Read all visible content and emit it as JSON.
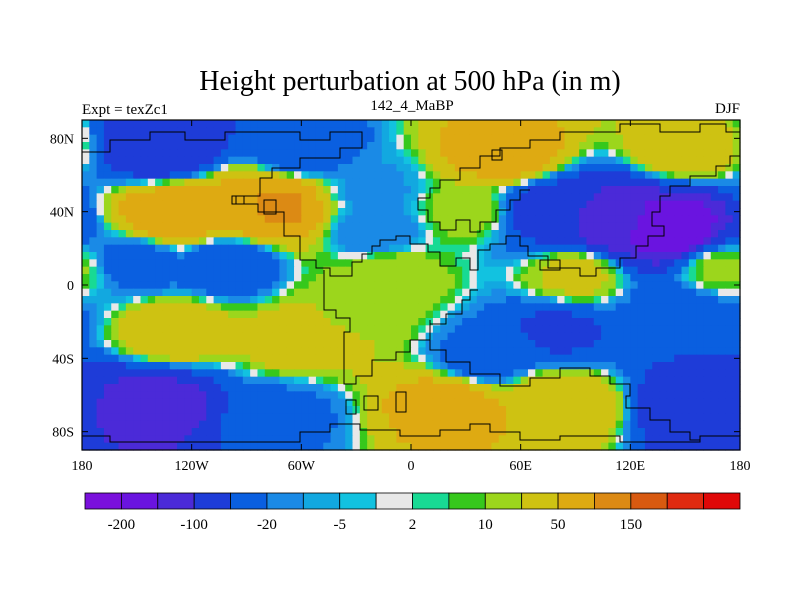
{
  "chart_data": {
    "type": "heatmap",
    "title": "Height perturbation at 500 hPa (in m)",
    "left_label": "Expt = texZc1",
    "center_label": "142_4_MaBP",
    "right_label": "DJF",
    "x_ticks": [
      {
        "value": -180,
        "label": "180"
      },
      {
        "value": -120,
        "label": "120W"
      },
      {
        "value": -60,
        "label": "60W"
      },
      {
        "value": 0,
        "label": "0"
      },
      {
        "value": 60,
        "label": "60E"
      },
      {
        "value": 120,
        "label": "120E"
      },
      {
        "value": 180,
        "label": "180"
      }
    ],
    "y_ticks": [
      {
        "value": 80,
        "label": "80N"
      },
      {
        "value": 40,
        "label": "40N"
      },
      {
        "value": 0,
        "label": "0"
      },
      {
        "value": -40,
        "label": "40S"
      },
      {
        "value": -80,
        "label": "80S"
      }
    ],
    "xlim": [
      -180,
      180
    ],
    "ylim": [
      -90,
      90
    ],
    "colorbar": {
      "colors": [
        "#7a10dc",
        "#6a14e0",
        "#4b2ad8",
        "#1e3cd8",
        "#0a5fe0",
        "#1a8ae6",
        "#12a8e0",
        "#12c2e0",
        "#e8e8e8",
        "#18da94",
        "#36c81c",
        "#9cd61c",
        "#cec212",
        "#deaa12",
        "#dc8a14",
        "#d85a10",
        "#e02a10",
        "#e00808"
      ],
      "labels": [
        {
          "boundary": 1,
          "text": "-200"
        },
        {
          "boundary": 3,
          "text": "-100"
        },
        {
          "boundary": 5,
          "text": "-20"
        },
        {
          "boundary": 7,
          "text": "-5"
        },
        {
          "boundary": 9,
          "text": "2"
        },
        {
          "boundary": 11,
          "text": "10"
        },
        {
          "boundary": 13,
          "text": "50"
        },
        {
          "boundary": 15,
          "text": "150"
        }
      ]
    },
    "field_centers": [
      {
        "lon": -135,
        "lat": 75,
        "value": -95
      },
      {
        "lon": -60,
        "lat": 75,
        "value": -40
      },
      {
        "lon": 50,
        "lat": 72,
        "value": 75
      },
      {
        "lon": 150,
        "lat": 75,
        "value": 35
      },
      {
        "lon": -130,
        "lat": 38,
        "value": 85
      },
      {
        "lon": -95,
        "lat": 40,
        "value": 60
      },
      {
        "lon": -75,
        "lat": 42,
        "value": 110
      },
      {
        "lon": -20,
        "lat": 52,
        "value": -12
      },
      {
        "lon": 75,
        "lat": 40,
        "value": -70
      },
      {
        "lon": 110,
        "lat": 35,
        "value": -130
      },
      {
        "lon": 140,
        "lat": 30,
        "value": -200
      },
      {
        "lon": -150,
        "lat": 12,
        "value": -30
      },
      {
        "lon": -100,
        "lat": 12,
        "value": -45
      },
      {
        "lon": -20,
        "lat": 30,
        "value": -20
      },
      {
        "lon": 30,
        "lat": 40,
        "value": 15
      },
      {
        "lon": -10,
        "lat": 5,
        "value": 18
      },
      {
        "lon": 90,
        "lat": 5,
        "value": 25
      },
      {
        "lon": 170,
        "lat": 8,
        "value": 12
      },
      {
        "lon": -130,
        "lat": -25,
        "value": 40
      },
      {
        "lon": -60,
        "lat": -30,
        "value": 35
      },
      {
        "lon": -30,
        "lat": -15,
        "value": 18
      },
      {
        "lon": 40,
        "lat": -40,
        "value": -30
      },
      {
        "lon": 80,
        "lat": -25,
        "value": -55
      },
      {
        "lon": 150,
        "lat": -15,
        "value": -35
      },
      {
        "lon": -140,
        "lat": -65,
        "value": -120
      },
      {
        "lon": -70,
        "lat": -70,
        "value": -25
      },
      {
        "lon": 20,
        "lat": -65,
        "value": 70
      },
      {
        "lon": 80,
        "lat": -65,
        "value": 50
      },
      {
        "lon": 160,
        "lat": -65,
        "value": -90
      }
    ]
  }
}
